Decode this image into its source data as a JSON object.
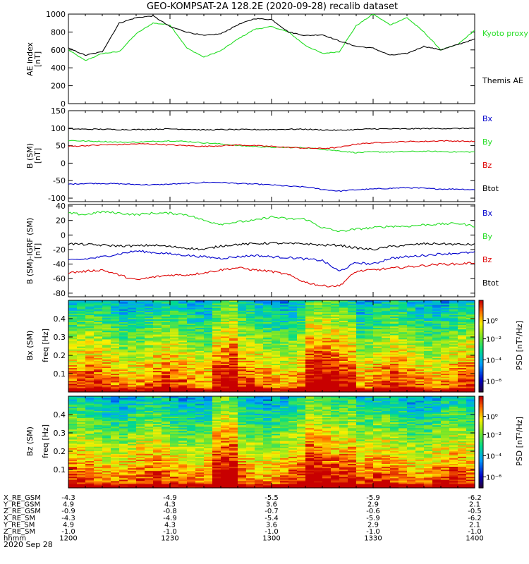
{
  "title": "GEO-KOMPSAT-2A 128.2E (2020-09-28) recalib dataset",
  "chart_data": [
    {
      "type": "line",
      "id": "ae",
      "ylabel": "AE index",
      "yunit": "[nT]",
      "ylim": [
        0,
        1000
      ],
      "yticks": [
        0,
        200,
        400,
        600,
        800,
        1000
      ],
      "series": [
        {
          "name": "Kyoto proxy AE",
          "color": "#22dd22",
          "x": [
            1200,
            1205,
            1210,
            1215,
            1220,
            1225,
            1230,
            1235,
            1240,
            1245,
            1250,
            1255,
            1300,
            1305,
            1310,
            1315,
            1320,
            1325,
            1330,
            1335,
            1340,
            1345,
            1350,
            1355,
            1400
          ],
          "y": [
            600,
            480,
            560,
            580,
            780,
            900,
            880,
            620,
            520,
            590,
            720,
            830,
            860,
            800,
            650,
            560,
            580,
            870,
            1000,
            880,
            960,
            800,
            600,
            660,
            820
          ]
        },
        {
          "name": "Themis AE",
          "color": "#000000",
          "x": [
            1200,
            1205,
            1210,
            1215,
            1220,
            1225,
            1230,
            1235,
            1240,
            1245,
            1250,
            1255,
            1300,
            1305,
            1310,
            1315,
            1320,
            1325,
            1330,
            1335,
            1340,
            1345,
            1350,
            1355,
            1400
          ],
          "y": [
            620,
            540,
            580,
            900,
            960,
            980,
            860,
            800,
            760,
            780,
            880,
            950,
            940,
            800,
            760,
            770,
            700,
            640,
            620,
            540,
            560,
            640,
            600,
            660,
            720
          ]
        }
      ]
    },
    {
      "type": "line",
      "id": "b",
      "ylabel": "B (SM)",
      "yunit": "[nT]",
      "ylim": [
        -110,
        150
      ],
      "yticks": [
        -100,
        -50,
        0,
        50,
        100,
        150
      ],
      "series": [
        {
          "name": "Bx",
          "color": "#0000cc",
          "x": [
            1200,
            1205,
            1210,
            1215,
            1220,
            1225,
            1230,
            1235,
            1240,
            1245,
            1250,
            1255,
            1300,
            1305,
            1310,
            1315,
            1320,
            1325,
            1330,
            1335,
            1340,
            1345,
            1350,
            1355,
            1400
          ],
          "y": [
            -60,
            -58,
            -58,
            -59,
            -61,
            -62,
            -60,
            -58,
            -55,
            -55,
            -58,
            -60,
            -62,
            -66,
            -68,
            -75,
            -80,
            -76,
            -74,
            -72,
            -70,
            -72,
            -74,
            -74,
            -76
          ]
        },
        {
          "name": "By",
          "color": "#22dd22",
          "x": [
            1200,
            1205,
            1210,
            1215,
            1220,
            1225,
            1230,
            1235,
            1240,
            1245,
            1250,
            1255,
            1300,
            1305,
            1310,
            1315,
            1320,
            1325,
            1330,
            1335,
            1340,
            1345,
            1350,
            1355,
            1400
          ],
          "y": [
            65,
            63,
            62,
            60,
            60,
            62,
            64,
            62,
            58,
            55,
            50,
            48,
            45,
            45,
            44,
            40,
            35,
            30,
            32,
            32,
            33,
            34,
            33,
            32,
            32
          ]
        },
        {
          "name": "Bz",
          "color": "#dd0000",
          "x": [
            1200,
            1205,
            1210,
            1215,
            1220,
            1225,
            1230,
            1235,
            1240,
            1245,
            1250,
            1255,
            1300,
            1305,
            1310,
            1315,
            1320,
            1325,
            1330,
            1335,
            1340,
            1345,
            1350,
            1355,
            1400
          ],
          "y": [
            48,
            50,
            52,
            53,
            55,
            55,
            52,
            50,
            48,
            50,
            52,
            50,
            48,
            45,
            43,
            42,
            45,
            55,
            58,
            60,
            62,
            62,
            64,
            63,
            62
          ]
        },
        {
          "name": "Btot",
          "color": "#000000",
          "x": [
            1200,
            1205,
            1210,
            1215,
            1220,
            1225,
            1230,
            1235,
            1240,
            1245,
            1250,
            1255,
            1300,
            1305,
            1310,
            1315,
            1320,
            1325,
            1330,
            1335,
            1340,
            1345,
            1350,
            1355,
            1400
          ],
          "y": [
            98,
            97,
            97,
            96,
            96,
            97,
            98,
            97,
            95,
            96,
            96,
            96,
            96,
            97,
            97,
            95,
            94,
            96,
            98,
            98,
            98,
            99,
            99,
            99,
            100
          ]
        }
      ]
    },
    {
      "type": "line",
      "id": "db",
      "ylabel": "B (SM)-IGRF (SM)",
      "yunit": "[nT]",
      "ylim": [
        -85,
        42
      ],
      "yticks": [
        -80,
        -60,
        -40,
        -20,
        0,
        20,
        40
      ],
      "series": [
        {
          "name": "Bx",
          "color": "#0000cc",
          "x": [
            1200,
            1205,
            1210,
            1215,
            1220,
            1225,
            1230,
            1235,
            1240,
            1245,
            1250,
            1255,
            1300,
            1305,
            1310,
            1315,
            1320,
            1325,
            1330,
            1335,
            1340,
            1345,
            1350,
            1355,
            1400
          ],
          "y": [
            -35,
            -33,
            -30,
            -26,
            -22,
            -24,
            -26,
            -28,
            -30,
            -32,
            -30,
            -28,
            -30,
            -31,
            -33,
            -35,
            -50,
            -38,
            -40,
            -32,
            -30,
            -28,
            -26,
            -25,
            -24
          ]
        },
        {
          "name": "By",
          "color": "#22dd22",
          "x": [
            1200,
            1205,
            1210,
            1215,
            1220,
            1225,
            1230,
            1235,
            1240,
            1245,
            1250,
            1255,
            1300,
            1305,
            1310,
            1315,
            1320,
            1325,
            1330,
            1335,
            1340,
            1345,
            1350,
            1355,
            1400
          ],
          "y": [
            30,
            28,
            32,
            30,
            28,
            30,
            30,
            28,
            20,
            15,
            18,
            20,
            25,
            22,
            22,
            10,
            5,
            8,
            10,
            12,
            12,
            14,
            15,
            16,
            12
          ]
        },
        {
          "name": "Bz",
          "color": "#dd0000",
          "x": [
            1200,
            1205,
            1210,
            1215,
            1220,
            1225,
            1230,
            1235,
            1240,
            1245,
            1250,
            1255,
            1300,
            1305,
            1310,
            1315,
            1320,
            1325,
            1330,
            1335,
            1340,
            1345,
            1350,
            1355,
            1400
          ],
          "y": [
            -52,
            -50,
            -48,
            -55,
            -62,
            -58,
            -55,
            -55,
            -52,
            -48,
            -45,
            -48,
            -50,
            -55,
            -65,
            -70,
            -70,
            -50,
            -48,
            -46,
            -44,
            -42,
            -40,
            -40,
            -38
          ]
        },
        {
          "name": "Btot",
          "color": "#000000",
          "x": [
            1200,
            1205,
            1210,
            1215,
            1220,
            1225,
            1230,
            1235,
            1240,
            1245,
            1250,
            1255,
            1300,
            1305,
            1310,
            1315,
            1320,
            1325,
            1330,
            1335,
            1340,
            1345,
            1350,
            1355,
            1400
          ],
          "y": [
            -12,
            -13,
            -14,
            -15,
            -15,
            -14,
            -16,
            -18,
            -20,
            -15,
            -13,
            -12,
            -11,
            -12,
            -12,
            -14,
            -14,
            -18,
            -20,
            -16,
            -14,
            -12,
            -12,
            -13,
            -13
          ]
        }
      ]
    },
    {
      "type": "heatmap",
      "id": "spec_bx",
      "ylabel": "Bx (SM)",
      "yunit": "freq [Hz]",
      "ylim": [
        0,
        0.5
      ],
      "yticks": [
        0.1,
        0.2,
        0.3,
        0.4
      ],
      "colorbar_label": "PSD [nT²/Hz]",
      "colorbar_ticks": [
        "10⁰",
        "10⁻²",
        "10⁻⁴",
        "10⁻⁶"
      ]
    },
    {
      "type": "heatmap",
      "id": "spec_bz",
      "ylabel": "Bz (SM)",
      "yunit": "freq [Hz]",
      "ylim": [
        0,
        0.5
      ],
      "yticks": [
        0.1,
        0.2,
        0.3,
        0.4
      ],
      "colorbar_label": "PSD [nT²/Hz]",
      "colorbar_ticks": [
        "10⁰",
        "10⁻²",
        "10⁻⁴",
        "10⁻⁶"
      ]
    }
  ],
  "ephemeris": {
    "rows": [
      {
        "label": "X_RE_GSM",
        "values": [
          "-4.3",
          "-4.9",
          "-5.5",
          "-5.9",
          "-6.2"
        ]
      },
      {
        "label": "Y_RE_GSM",
        "values": [
          "4.9",
          "4.3",
          "3.6",
          "2.9",
          "2.1"
        ]
      },
      {
        "label": "Z_RE_GSM",
        "values": [
          "-0.9",
          "-0.8",
          "-0.7",
          "-0.6",
          "-0.5"
        ]
      },
      {
        "label": "X_RE_SM",
        "values": [
          "-4.3",
          "-4.9",
          "-5.4",
          "-5.9",
          "-6.2"
        ]
      },
      {
        "label": "Y_RE_SM",
        "values": [
          "4.9",
          "4.3",
          "3.6",
          "2.9",
          "2.1"
        ]
      },
      {
        "label": "Z_RE_SM",
        "values": [
          "-1.0",
          "-1.0",
          "-1.0",
          "-1.0",
          "-1.0"
        ]
      },
      {
        "label": "hhmm",
        "values": [
          "1200",
          "1230",
          "1300",
          "1330",
          "1400"
        ]
      }
    ],
    "date": "2020 Sep 28"
  }
}
